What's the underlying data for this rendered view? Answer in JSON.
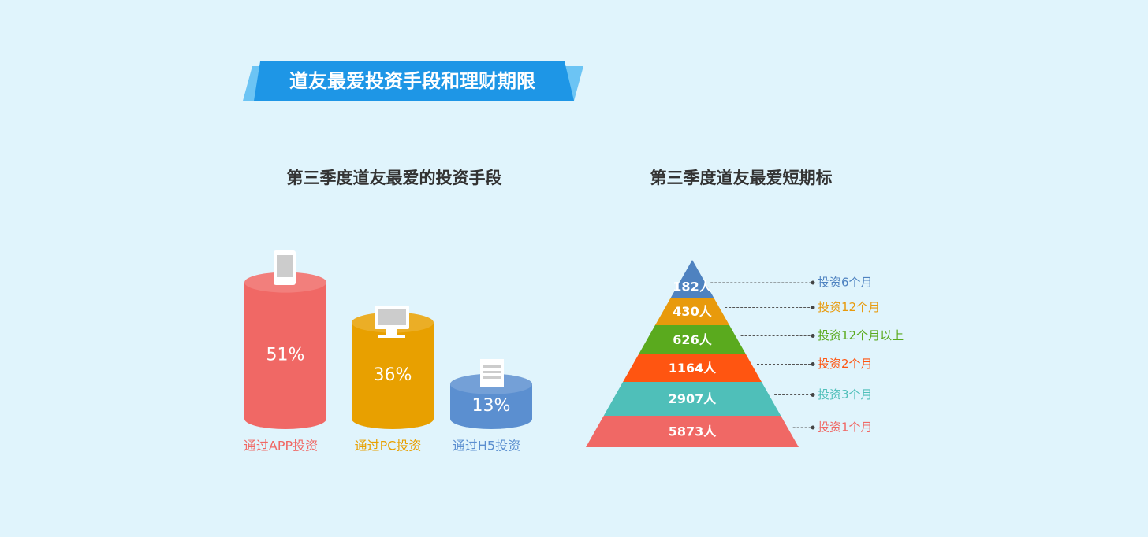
{
  "header": {
    "title": "道友最爱投资手段和理财期限"
  },
  "chart_data": [
    {
      "type": "bar",
      "title": "第三季度道友最爱的投资手段",
      "categories": [
        "通过APP投资",
        "通过PC投资",
        "通过H5投资"
      ],
      "values": [
        51,
        36,
        13
      ],
      "value_labels": [
        "51%",
        "36%",
        "13%"
      ],
      "colors": [
        "#f06865",
        "#e8a000",
        "#5b8fd0"
      ]
    },
    {
      "type": "pyramid",
      "title": "第三季度道友最爱短期标",
      "categories": [
        "投资6个月",
        "投资12个月",
        "投资12个月以上",
        "投资2个月",
        "投资3个月",
        "投资1个月"
      ],
      "values": [
        182,
        430,
        626,
        1164,
        2907,
        5873
      ],
      "value_labels": [
        "182人",
        "430人",
        "626人",
        "1164人",
        "2907人",
        "5873人"
      ],
      "colors": [
        "#4e82c0",
        "#e89a0c",
        "#5aaa1e",
        "#ff5511",
        "#4fbfb9",
        "#f06865"
      ]
    }
  ]
}
